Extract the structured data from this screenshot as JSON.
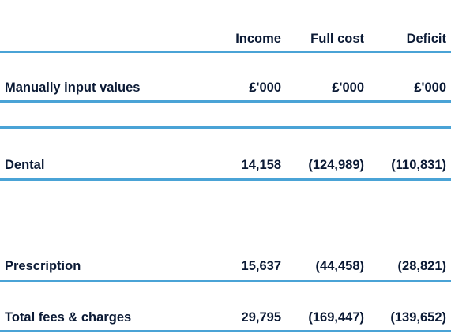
{
  "table": {
    "header": {
      "label": "",
      "columns": [
        "Income",
        "Full cost",
        "Deficit"
      ]
    },
    "units": {
      "label": "Manually input values",
      "values": [
        "£'000",
        "£'000",
        "£'000"
      ]
    },
    "rows": [
      {
        "label": "Dental",
        "values": [
          "14,158",
          "(124,989)",
          "(110,831)"
        ]
      },
      {
        "label": "Prescription",
        "values": [
          "15,637",
          "(44,458)",
          "(28,821)"
        ]
      },
      {
        "label": "Total fees & charges",
        "values": [
          "29,795",
          "(169,447)",
          "(139,652)"
        ]
      }
    ]
  },
  "colors": {
    "text": "#0b1a35",
    "rule": "#4aa3d6"
  }
}
